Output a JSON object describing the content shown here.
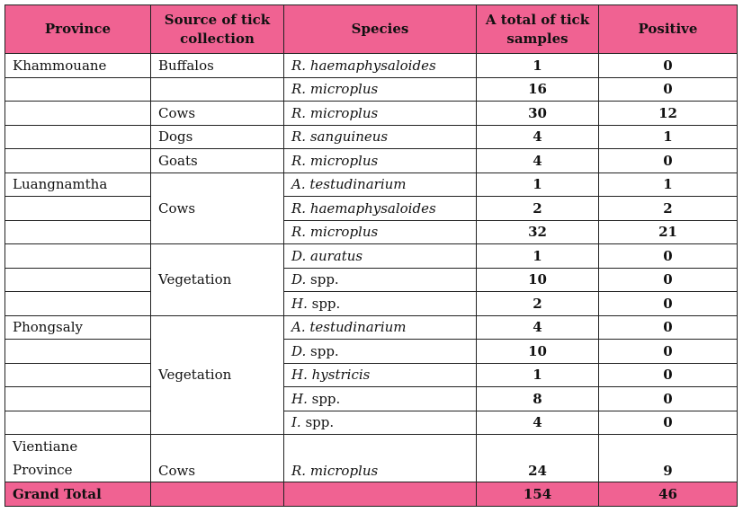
{
  "header": {
    "province": "Province",
    "source": "Source of tick collection",
    "species": "Species",
    "total": "A total of tick samples",
    "positive": "Positive"
  },
  "rows": [
    {
      "province": "Khammouane",
      "source": "Buffalos",
      "species_genus": "R. haemaphysaloides",
      "species_rest": "",
      "total": "1",
      "positive": "0"
    },
    {
      "province": "",
      "source": "",
      "species_genus": "R. microplus",
      "species_rest": "",
      "total": "16",
      "positive": "0"
    },
    {
      "province": "",
      "source": "Cows",
      "species_genus": "R. microplus",
      "species_rest": "",
      "total": "30",
      "positive": "12"
    },
    {
      "province": "",
      "source": "Dogs",
      "species_genus": "R. sanguineus",
      "species_rest": "",
      "total": "4",
      "positive": "1"
    },
    {
      "province": "",
      "source": "Goats",
      "species_genus": "R. microplus",
      "species_rest": "",
      "total": "4",
      "positive": "0"
    },
    {
      "province": "Luangnamtha",
      "source": "Cows",
      "species_genus": "A. testudinarium",
      "species_rest": "",
      "total": "1",
      "positive": "1"
    },
    {
      "province": "",
      "source": "",
      "species_genus": "R. haemaphysaloides",
      "species_rest": "",
      "total": "2",
      "positive": "2"
    },
    {
      "province": "",
      "source": "",
      "species_genus": "R. microplus",
      "species_rest": "",
      "total": "32",
      "positive": "21"
    },
    {
      "province": "",
      "source": "Vegetation",
      "species_genus": "D. auratus",
      "species_rest": "",
      "total": "1",
      "positive": "0"
    },
    {
      "province": "",
      "source": "",
      "species_genus": "D.",
      "species_rest": " spp.",
      "total": "10",
      "positive": "0"
    },
    {
      "province": "",
      "source": "",
      "species_genus": "H.",
      "species_rest": " spp.",
      "total": "2",
      "positive": "0"
    },
    {
      "province": "Phongsaly",
      "source": "Vegetation",
      "species_genus": "A. testudinarium",
      "species_rest": "",
      "total": "4",
      "positive": "0"
    },
    {
      "province": "",
      "source": "",
      "species_genus": "D.",
      "species_rest": " spp.",
      "total": "10",
      "positive": "0"
    },
    {
      "province": "",
      "source": "",
      "species_genus": "H. hystricis",
      "species_rest": "",
      "total": "1",
      "positive": "0"
    },
    {
      "province": "",
      "source": "",
      "species_genus": "H.",
      "species_rest": " spp.",
      "total": "8",
      "positive": "0"
    },
    {
      "province": "",
      "source": "",
      "species_genus": "I.",
      "species_rest": " spp.",
      "total": "4",
      "positive": "0"
    },
    {
      "province_line1": "Vientiane",
      "province_line2": "Province",
      "source": "Cows",
      "species_genus": "R. microplus",
      "species_rest": "",
      "total": "24",
      "positive": "9"
    }
  ],
  "footer": {
    "label": "Grand Total",
    "total": "154",
    "positive": "46"
  },
  "colors": {
    "header_bg": "#f06292",
    "border": "#222222"
  }
}
